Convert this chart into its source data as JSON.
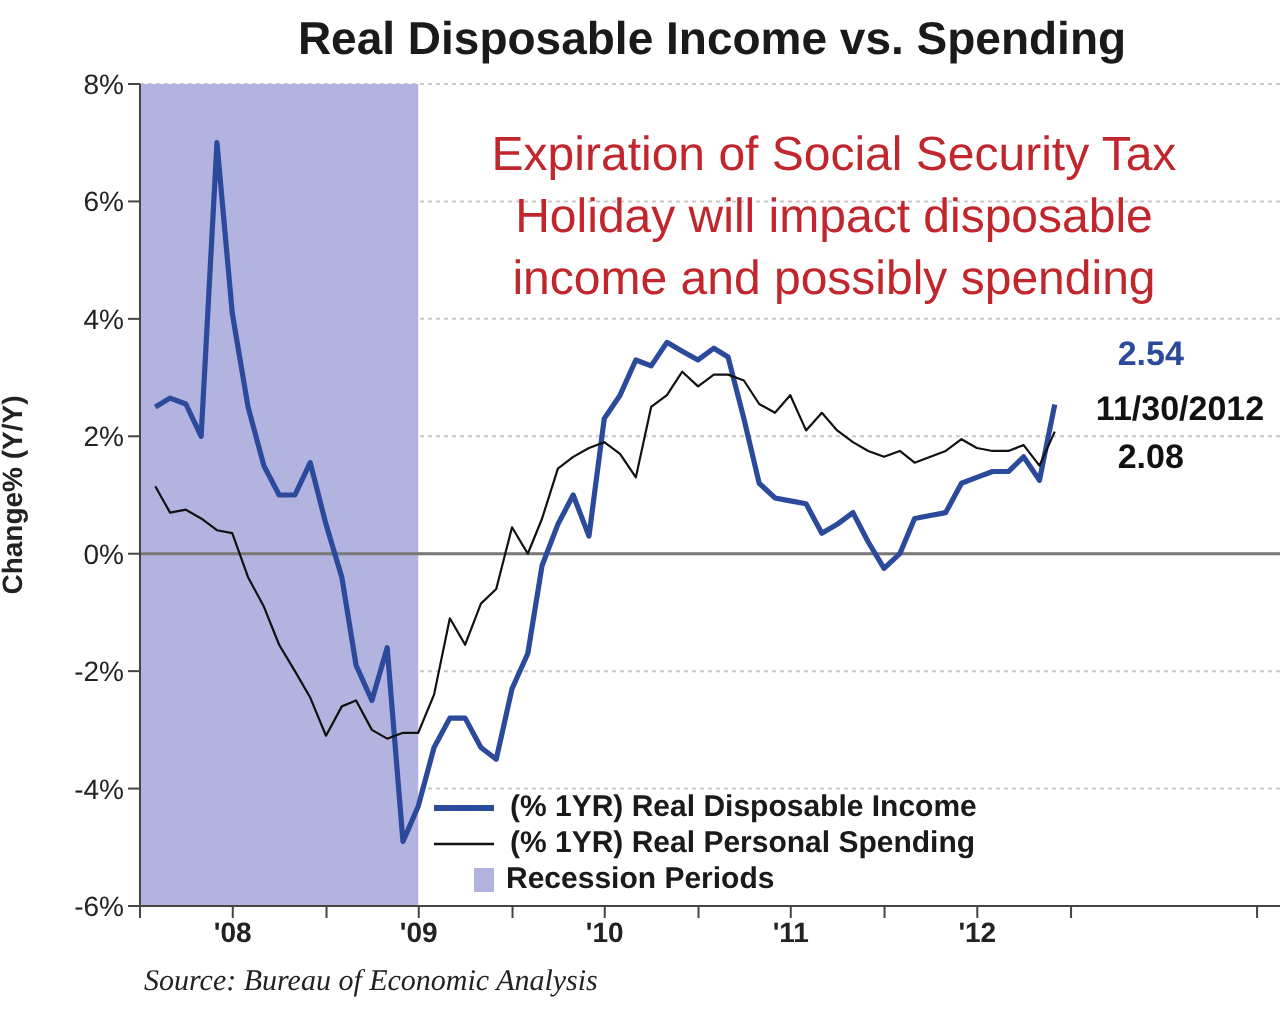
{
  "chart_data": {
    "type": "line",
    "title": "Real Disposable Income vs. Spending",
    "ylabel": "Change% (Y/Y)",
    "x": [
      "2008-01-31",
      "2008-02-29",
      "2008-03-31",
      "2008-04-30",
      "2008-05-31",
      "2008-06-30",
      "2008-07-31",
      "2008-08-31",
      "2008-09-30",
      "2008-10-31",
      "2008-11-30",
      "2008-12-31",
      "2009-01-31",
      "2009-02-28",
      "2009-03-31",
      "2009-04-30",
      "2009-05-31",
      "2009-06-30",
      "2009-07-31",
      "2009-08-31",
      "2009-09-30",
      "2009-10-31",
      "2009-11-30",
      "2009-12-31",
      "2010-01-31",
      "2010-02-28",
      "2010-03-31",
      "2010-04-30",
      "2010-05-31",
      "2010-06-30",
      "2010-07-31",
      "2010-08-31",
      "2010-09-30",
      "2010-10-31",
      "2010-11-30",
      "2010-12-31",
      "2011-01-31",
      "2011-02-28",
      "2011-03-31",
      "2011-04-30",
      "2011-05-31",
      "2011-06-30",
      "2011-07-31",
      "2011-08-31",
      "2011-09-30",
      "2011-10-31",
      "2011-11-30",
      "2011-12-31",
      "2012-01-31",
      "2012-02-29",
      "2012-03-31",
      "2012-04-30",
      "2012-05-31",
      "2012-06-30",
      "2012-07-31",
      "2012-08-31",
      "2012-09-30",
      "2012-10-31",
      "2012-11-30"
    ],
    "series": [
      {
        "name": "(% 1YR) Real Disposable Income",
        "color": "#2b4a9b",
        "values": [
          2.5,
          2.65,
          2.55,
          2.0,
          7.0,
          4.1,
          2.5,
          1.5,
          1.0,
          1.0,
          1.55,
          0.5,
          -0.4,
          -1.9,
          -2.5,
          -1.6,
          -4.9,
          -4.3,
          -3.3,
          -2.8,
          -2.8,
          -3.3,
          -3.5,
          -2.3,
          -1.7,
          -0.2,
          0.5,
          1.0,
          0.3,
          2.3,
          2.7,
          3.3,
          3.2,
          3.6,
          3.45,
          3.3,
          3.5,
          3.35,
          2.3,
          1.2,
          0.95,
          0.9,
          0.85,
          0.35,
          0.5,
          0.7,
          0.2,
          -0.25,
          0,
          0.6,
          0.65,
          0.7,
          1.2,
          1.3,
          1.4,
          1.4,
          1.65,
          1.25,
          2.54
        ]
      },
      {
        "name": "(% 1YR) Real Personal Spending",
        "color": "#111111",
        "values": [
          1.15,
          0.7,
          0.75,
          0.6,
          0.4,
          0.35,
          -0.4,
          -0.9,
          -1.55,
          -2.0,
          -2.45,
          -3.1,
          -2.6,
          -2.5,
          -3.0,
          -3.15,
          -3.05,
          -3.05,
          -2.4,
          -1.1,
          -1.55,
          -0.85,
          -0.6,
          0.45,
          0,
          0.6,
          1.45,
          1.65,
          1.8,
          1.9,
          1.7,
          1.3,
          2.5,
          2.7,
          3.1,
          2.85,
          3.05,
          3.05,
          2.95,
          2.55,
          2.4,
          2.7,
          2.1,
          2.4,
          2.1,
          1.9,
          1.75,
          1.65,
          1.75,
          1.55,
          1.65,
          1.75,
          1.95,
          1.8,
          1.75,
          1.75,
          1.85,
          1.5,
          2.08
        ]
      }
    ],
    "xlim": [
      "2008-01-01",
      "2014-02-15"
    ],
    "xticks": [
      {
        "value": "2008-01-01",
        "label": null
      },
      {
        "value": "2008-07-01",
        "label": "'08"
      },
      {
        "value": "2009-01-01",
        "label": null
      },
      {
        "value": "2009-07-01",
        "label": "'09"
      },
      {
        "value": "2010-01-01",
        "label": null
      },
      {
        "value": "2010-07-01",
        "label": "'10"
      },
      {
        "value": "2011-01-01",
        "label": null
      },
      {
        "value": "2011-07-01",
        "label": "'11"
      },
      {
        "value": "2012-01-01",
        "label": null
      },
      {
        "value": "2012-07-01",
        "label": "'12"
      },
      {
        "value": "2013-01-01",
        "label": null
      },
      {
        "value": "2014-01-01",
        "label": null
      }
    ],
    "ylim": [
      -6,
      8
    ],
    "yticks": [
      {
        "value": -6,
        "label": "-6%"
      },
      {
        "value": -4,
        "label": "-4%"
      },
      {
        "value": -2,
        "label": "-2%"
      },
      {
        "value": 0,
        "label": "0%"
      },
      {
        "value": 2,
        "label": "2%"
      },
      {
        "value": 4,
        "label": "4%"
      },
      {
        "value": 6,
        "label": "6%"
      },
      {
        "value": 8,
        "label": "8%"
      }
    ],
    "bands": [
      {
        "axis": "x",
        "from": "2008-01-01",
        "to": "2009-06-30",
        "label": "Recession Periods",
        "color": "#b3b3e0"
      }
    ],
    "ref_lines": [
      {
        "axis": "y",
        "value": 0,
        "color": "#777777"
      }
    ],
    "grid": "y",
    "legend": "bottom",
    "marker": "none",
    "line_style": "solid",
    "annotations": [
      "Expiration of Social Security Tax Holiday will impact disposable income and possibly spending",
      {
        "text": "2.54",
        "x": "2012-11-30",
        "y": 2.54
      },
      "11/30/2012",
      {
        "text": "2.08",
        "x": "2012-11-30",
        "y": 2.08
      },
      "Source: Bureau of Economic Analysis"
    ]
  }
}
